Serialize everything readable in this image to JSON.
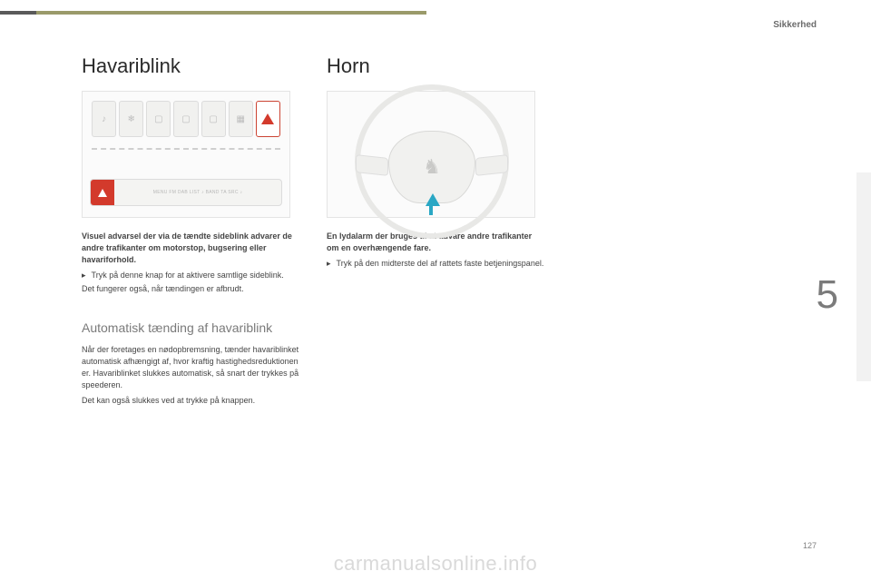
{
  "header": {
    "section": "Sikkerhed"
  },
  "chapter_number": "5",
  "page_number": "127",
  "watermark": "carmanualsonline.info",
  "col1": {
    "title": "Havariblink",
    "strip_labels": "MENU   FM   DAB   LIST   ♪   BAND   TA   SRC   ♪",
    "intro_bold": "Visuel advarsel der via de tændte sideblink advarer de andre trafikanter om motorstop, bugsering eller havariforhold.",
    "bullet_mark": "▸",
    "bullet_text": "Tryk på denne knap for at aktivere samtlige sideblink.",
    "outro": "Det fungerer også, når tændingen er afbrudt.",
    "sub_title": "Automatisk tænding af havariblink",
    "sub_body": "Når der foretages en nødopbremsning, tænder havariblinket automatisk afhængigt af, hvor kraftig hastighedsreduktionen er. Havariblinket slukkes automatisk, så snart der trykkes på speederen.",
    "sub_body2": "Det kan også slukkes ved at trykke på knappen."
  },
  "col2": {
    "title": "Horn",
    "intro_bold": "En lydalarm der bruges til at advare andre trafikanter om en overhængende fare.",
    "bullet_mark": "▸",
    "bullet_text": "Tryk på den midterste del af rattets faste betjeningspanel."
  }
}
